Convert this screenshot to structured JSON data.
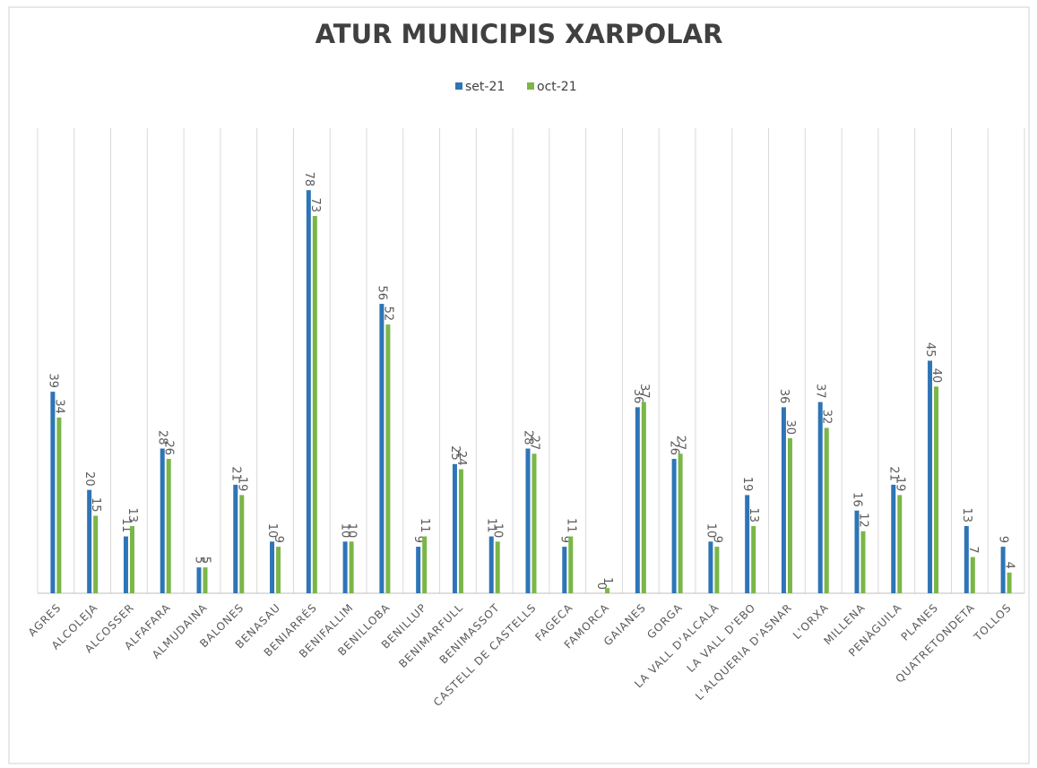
{
  "chart_data": {
    "type": "bar",
    "title": "ATUR MUNICIPIS XARPOLAR",
    "categories": [
      "AGRES",
      "ALCOLEJA",
      "ALCOSSER",
      "ALFAFARA",
      "ALMUDAINA",
      "BALONES",
      "BENASAU",
      "BENIARRÉS",
      "BENIFALLIM",
      "BENILLOBA",
      "BENILLUP",
      "BENIMARFULL",
      "BENIMASSOT",
      "CASTELL DE CASTELLS",
      "FAGECA",
      "FAMORCA",
      "GAIANES",
      "GORGA",
      "LA VALL D'ALCALÀ",
      "LA VALL D'EBO",
      "L'ALQUERIA D'ASNAR",
      "L'ORXA",
      "MILLENA",
      "PENÀGUILA",
      "PLANES",
      "QUATRETONDETA",
      "TOLLOS"
    ],
    "series": [
      {
        "name": "set-21",
        "color": "#2e75b6",
        "values": [
          39,
          20,
          11,
          28,
          5,
          21,
          10,
          78,
          10,
          56,
          9,
          25,
          11,
          28,
          9,
          0,
          36,
          26,
          10,
          19,
          36,
          37,
          16,
          21,
          45,
          13,
          9
        ]
      },
      {
        "name": "oct-21",
        "color": "#7ab648",
        "values": [
          34,
          15,
          13,
          26,
          5,
          19,
          9,
          73,
          10,
          52,
          11,
          24,
          10,
          27,
          11,
          1,
          37,
          27,
          9,
          13,
          30,
          32,
          12,
          19,
          40,
          7,
          4
        ]
      }
    ],
    "ylim": [
      0,
      90
    ],
    "legend": "top",
    "grid": true
  }
}
